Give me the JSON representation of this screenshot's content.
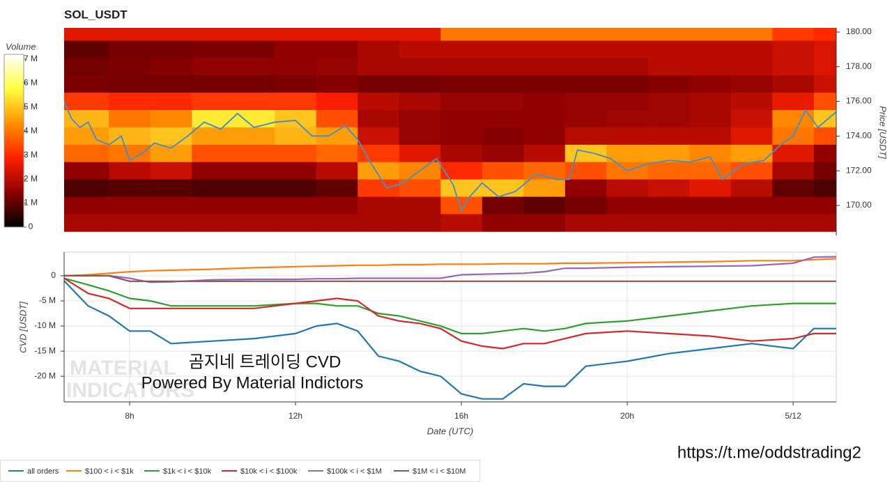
{
  "chart_data": [
    {
      "type": "heatmap",
      "title": "SOL_USDT",
      "x_bins": [
        6.42,
        7.5,
        8.5,
        9.5,
        10.5,
        11.5,
        12.5,
        13.5,
        14.5,
        15.5,
        16.5,
        17.5,
        18.5,
        19.5,
        20.5,
        21.5,
        22.5,
        23.5,
        24.5,
        25.04
      ],
      "y_bins": [
        180.5,
        179.5,
        178.5,
        177.5,
        176.5,
        175.5,
        174.5,
        173.5,
        172.5,
        171.5,
        170.5,
        169.5,
        168.5
      ],
      "z": [
        [
          2.5,
          2.5,
          2.5,
          2.5,
          2.5,
          2.5,
          2.5,
          2.5,
          2.5,
          4,
          4,
          4,
          4,
          4,
          4,
          4,
          4,
          3.2,
          3
        ],
        [
          1,
          1.2,
          1.2,
          1.3,
          1.3,
          1.5,
          1.5,
          1.8,
          2,
          2,
          2,
          2,
          2,
          2,
          2,
          2,
          2,
          2.2,
          2.4
        ],
        [
          1.2,
          1.3,
          1.4,
          1.5,
          1.5,
          1.5,
          1.6,
          1.8,
          1.8,
          1.8,
          1.8,
          1.8,
          1.8,
          1.8,
          2,
          2,
          2,
          2.2,
          2.4
        ],
        [
          1.3,
          1.2,
          1.2,
          1.2,
          1.2,
          1.3,
          1.4,
          1.2,
          1.2,
          1.3,
          1.3,
          1.3,
          1.3,
          1.3,
          1.4,
          1.5,
          1.6,
          1.8,
          2.2
        ],
        [
          3.2,
          3,
          3,
          3.2,
          3.2,
          3.2,
          2.8,
          2,
          1.8,
          1.6,
          1.6,
          1.5,
          1.6,
          1.6,
          1.7,
          1.8,
          2,
          2.6,
          3.5
        ],
        [
          4.8,
          4,
          4.2,
          5.5,
          5.5,
          5,
          3.5,
          1.8,
          1.6,
          1.5,
          1.5,
          1.5,
          1.6,
          1.7,
          1.7,
          1.8,
          2.2,
          4.2,
          5
        ],
        [
          4.5,
          4.8,
          5,
          4.5,
          4.5,
          4.8,
          4.5,
          2.2,
          1.6,
          1.5,
          1.4,
          1.5,
          2,
          2,
          2,
          2,
          2.5,
          4,
          3.5
        ],
        [
          3.8,
          4,
          4.5,
          3.5,
          3.5,
          3.5,
          3.8,
          3.2,
          2.5,
          1.8,
          1.6,
          2,
          5,
          4.5,
          4.5,
          4.2,
          4.5,
          2.5,
          1.5
        ],
        [
          1.5,
          2,
          2.2,
          1.5,
          1.5,
          1.5,
          2,
          4.5,
          4.2,
          3,
          3.5,
          3.8,
          3.5,
          4,
          3.8,
          3.8,
          3.5,
          1.8,
          1.2
        ],
        [
          0.8,
          0.9,
          0.9,
          0.8,
          0.8,
          0.8,
          1,
          3.2,
          3.5,
          5,
          5,
          4.5,
          1.5,
          2,
          2.2,
          2.5,
          2,
          1,
          0.8
        ],
        [
          1.5,
          1.5,
          1.5,
          1.5,
          1.5,
          1.5,
          1.5,
          1.8,
          1.8,
          3.5,
          1.2,
          1,
          1.2,
          1.5,
          1.5,
          1.5,
          1.5,
          1.5,
          1.5
        ],
        [
          1.8,
          1.8,
          1.8,
          1.8,
          1.8,
          1.8,
          1.8,
          1.8,
          1.8,
          2,
          1.5,
          1.5,
          1.8,
          1.8,
          1.8,
          1.8,
          1.8,
          1.8,
          1.8
        ]
      ],
      "colorscale": [
        "#000000",
        "#8b0000",
        "#ff2000",
        "#ff9000",
        "#ffff40",
        "#ffffff"
      ],
      "colorbar": {
        "title": "Volume",
        "lim": [
          0,
          7.2
        ],
        "ticks": [
          {
            "value": 0,
            "label": "0"
          },
          {
            "value": 1,
            "label": "1 M"
          },
          {
            "value": 2,
            "label": "2 M"
          },
          {
            "value": 3,
            "label": "3 M"
          },
          {
            "value": 4,
            "label": "4 M"
          },
          {
            "value": 5,
            "label": "5 M"
          },
          {
            "value": 6,
            "label": "6 M"
          },
          {
            "value": 7,
            "label": "7 M"
          }
        ]
      },
      "ylabel": "Price [USDT]",
      "xlim": [
        6.42,
        25.04
      ],
      "ylim": [
        168.27,
        180.24
      ],
      "yticks": [
        {
          "value": 170,
          "label": "170.00"
        },
        {
          "value": 172,
          "label": "172.00"
        },
        {
          "value": 174,
          "label": "174.00"
        },
        {
          "value": 176,
          "label": "176.00"
        },
        {
          "value": 178,
          "label": "178.00"
        },
        {
          "value": 180,
          "label": "180.00"
        }
      ],
      "series": [
        {
          "color": "#4a8fc0",
          "x": [
            6.42,
            6.6,
            6.8,
            7,
            7.2,
            7.5,
            7.8,
            8,
            8.3,
            8.6,
            9,
            9.4,
            9.8,
            10.2,
            10.6,
            11,
            11.5,
            12,
            12.4,
            12.8,
            13.2,
            13.5,
            13.8,
            14.2,
            14.6,
            15,
            15.4,
            15.8,
            16,
            16.2,
            16.5,
            16.9,
            17.3,
            17.8,
            18.3,
            18.6,
            18.8,
            19.2,
            19.6,
            20,
            20.5,
            21,
            21.5,
            22,
            22.3,
            22.8,
            23.3,
            23.7,
            24,
            24.3,
            24.6,
            25.04
          ],
          "values": [
            176,
            175,
            174.5,
            174.8,
            173.8,
            173.5,
            174,
            172.6,
            173,
            173.6,
            173.3,
            174,
            174.8,
            174.4,
            175.3,
            174.5,
            174.8,
            174.9,
            174,
            174,
            174.6,
            173.8,
            172.5,
            171,
            171.3,
            172,
            172.7,
            171.2,
            169.7,
            170.5,
            171.3,
            170.5,
            170.8,
            171.8,
            171.5,
            171.5,
            173.2,
            173,
            172.7,
            172,
            172.4,
            172.6,
            172.5,
            172.8,
            171.5,
            172.4,
            172.6,
            173.5,
            174,
            175.5,
            174.5,
            175.4
          ]
        }
      ]
    },
    {
      "type": "line",
      "xlabel": "Date (UTC)",
      "ylabel": "CVD [USDT]",
      "xlim": [
        6.42,
        25.04
      ],
      "xticks": [
        {
          "value": 8,
          "label": "8h"
        },
        {
          "value": 12,
          "label": "12h"
        },
        {
          "value": 16,
          "label": "16h"
        },
        {
          "value": 20,
          "label": "20h"
        },
        {
          "value": 24,
          "label": "5/12"
        }
      ],
      "ylim": [
        -25.1,
        4.7
      ],
      "yticks": [
        0,
        {
          "value": -5,
          "label": "-5 M"
        },
        {
          "value": -10,
          "label": "-10 M"
        },
        {
          "value": -15,
          "label": "-15 M"
        },
        {
          "value": -20,
          "label": "-20 M"
        }
      ],
      "grid": true,
      "x": [
        6.42,
        7,
        7.5,
        8,
        8.5,
        9,
        10,
        11,
        12,
        12.5,
        13,
        13.5,
        14,
        14.5,
        15,
        15.5,
        16,
        16.5,
        17,
        17.5,
        18,
        18.5,
        19,
        20,
        21,
        22,
        23,
        24,
        24.5,
        25.04
      ],
      "series": [
        {
          "name": "all orders",
          "color": "#1f77b4",
          "values": [
            -1,
            -6,
            -8,
            -11,
            -11,
            -13.5,
            -13,
            -12.5,
            -11.5,
            -10,
            -9.5,
            -11,
            -16,
            -17,
            -19,
            -20,
            -23.5,
            -24.5,
            -24.5,
            -21.5,
            -22,
            -22,
            -18,
            -17,
            -15.5,
            -14.5,
            -13.5,
            -14.5,
            -10.5,
            -10.5
          ]
        },
        {
          "name": "$100 < i < $1k",
          "color": "#ff7f0e",
          "values": [
            0,
            0.2,
            0.5,
            0.8,
            1,
            1.1,
            1.3,
            1.6,
            1.8,
            1.9,
            2,
            2.1,
            2.1,
            2.2,
            2.2,
            2.3,
            2.3,
            2.3,
            2.4,
            2.4,
            2.4,
            2.5,
            2.5,
            2.6,
            2.7,
            2.8,
            3,
            3,
            3.2,
            3.4
          ]
        },
        {
          "name": "$1k < i < $10k",
          "color": "#2ca02c",
          "values": [
            -0.5,
            -1.8,
            -3,
            -4.5,
            -5,
            -6,
            -6,
            -6,
            -5.5,
            -5.5,
            -6,
            -6,
            -7.5,
            -8,
            -9,
            -10,
            -11.5,
            -11.5,
            -11,
            -10.5,
            -11,
            -10.5,
            -9.5,
            -9,
            -8,
            -7,
            -6,
            -5.5,
            -5.5,
            -5.5
          ]
        },
        {
          "name": "$10k < i < $100k",
          "color": "#d62728",
          "values": [
            -0.5,
            -3.5,
            -4.5,
            -6.5,
            -6.5,
            -6.5,
            -6.5,
            -6.5,
            -5.5,
            -5,
            -4.5,
            -5,
            -8,
            -9,
            -9.5,
            -10.5,
            -13,
            -14,
            -14.5,
            -13.5,
            -13.5,
            -12.5,
            -11.5,
            -11,
            -11.5,
            -12,
            -13,
            -12.5,
            -11.5,
            -11.5
          ]
        },
        {
          "name": "$100k < i < $1M",
          "color": "#9467bd",
          "values": [
            0,
            0,
            0,
            -0.5,
            -1.3,
            -1.2,
            -0.8,
            -0.7,
            -0.7,
            -0.6,
            -0.6,
            -0.5,
            -0.5,
            -0.5,
            -0.5,
            -0.5,
            0.2,
            0.3,
            0.4,
            0.5,
            0.8,
            1.5,
            1.5,
            1.7,
            1.8,
            1.9,
            2,
            2.5,
            3.7,
            3.8
          ]
        },
        {
          "name": "$1M < i < $10M",
          "color": "#8c564b",
          "values": [
            0,
            0,
            0,
            -1.1,
            -1.1,
            -1.1,
            -1.1,
            -1.1,
            -1.1,
            -1.1,
            -1.1,
            -1.1,
            -1.1,
            -1.1,
            -1.1,
            -1.1,
            -1.1,
            -1.1,
            -1.1,
            -1.1,
            -1.1,
            -1.1,
            -1.1,
            -1.1,
            -1.1,
            -1.1,
            -1.1,
            -1.1,
            -1.1,
            -1.1
          ]
        }
      ],
      "watermark": [
        "MATERIAL",
        "INDICATORS"
      ],
      "annotations": [
        "곰지네 트레이딩 CVD",
        "Powered By Material Indictors"
      ]
    }
  ],
  "footer": {
    "url": "https://t.me/oddstrading2"
  }
}
